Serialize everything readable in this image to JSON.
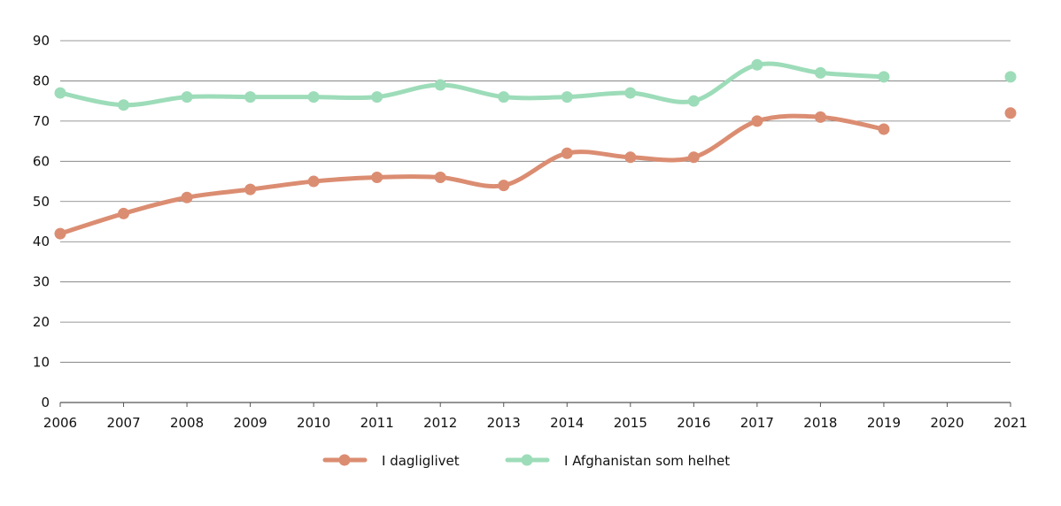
{
  "chart_data": {
    "type": "line",
    "title": "",
    "xlabel": "",
    "ylabel": "",
    "x": [
      2006,
      2007,
      2008,
      2009,
      2010,
      2011,
      2012,
      2013,
      2014,
      2015,
      2016,
      2017,
      2018,
      2019,
      2020,
      2021
    ],
    "x_tick_labels": [
      "2006",
      "2007",
      "2008",
      "2009",
      "2010",
      "2011",
      "2012",
      "2013",
      "2014",
      "2015",
      "2016",
      "2017",
      "2018",
      "2019",
      "2020",
      "2021"
    ],
    "ylim": [
      0,
      90
    ],
    "y_ticks": [
      0,
      10,
      20,
      30,
      40,
      50,
      60,
      70,
      80,
      90
    ],
    "grid": "horizontal",
    "smooth": true,
    "legend_position": "bottom",
    "series": [
      {
        "name": "I dagliglivet",
        "color": "#db8d72",
        "values": [
          42,
          47,
          51,
          53,
          55,
          56,
          56,
          54,
          62,
          61,
          61,
          70,
          71,
          68,
          null,
          72
        ]
      },
      {
        "name": "I Afghanistan som helhet",
        "color": "#9ddcb9",
        "values": [
          77,
          74,
          76,
          76,
          76,
          76,
          79,
          76,
          76,
          77,
          75,
          84,
          82,
          81,
          null,
          81
        ]
      }
    ]
  }
}
